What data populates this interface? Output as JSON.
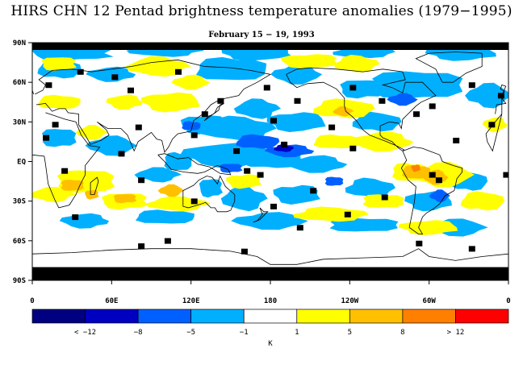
{
  "title": "HIRS CHN 12 Pentad brightness temperature anomalies (1979−1995)",
  "subtitle": "February 15 − 19, 1993",
  "lat_labels": [
    "90N",
    "60N",
    "30N",
    "EQ",
    "30S",
    "60S",
    "90S"
  ],
  "lon_labels": [
    "0",
    "60E",
    "120E",
    "180",
    "120W",
    "60W",
    "0"
  ],
  "colorbar": {
    "colors": [
      "#000080",
      "#0000c0",
      "#0060ff",
      "#00b0ff",
      "#ffffff",
      "#ffff00",
      "#ffc000",
      "#ff8000",
      "#ff0000"
    ],
    "labels": [
      "< −12",
      "−8",
      "−5",
      "−1",
      "1",
      "5",
      "8",
      "> 12"
    ],
    "unit": "K"
  },
  "colors": {
    "missing": "#000000",
    "coast": "#000000",
    "cold": "#00b0ff",
    "cold_strong": "#0060ff",
    "cold_extreme": "#0000c0",
    "warm": "#ffff00",
    "warm_strong": "#ffc000",
    "warm_extreme": "#ff8000"
  }
}
